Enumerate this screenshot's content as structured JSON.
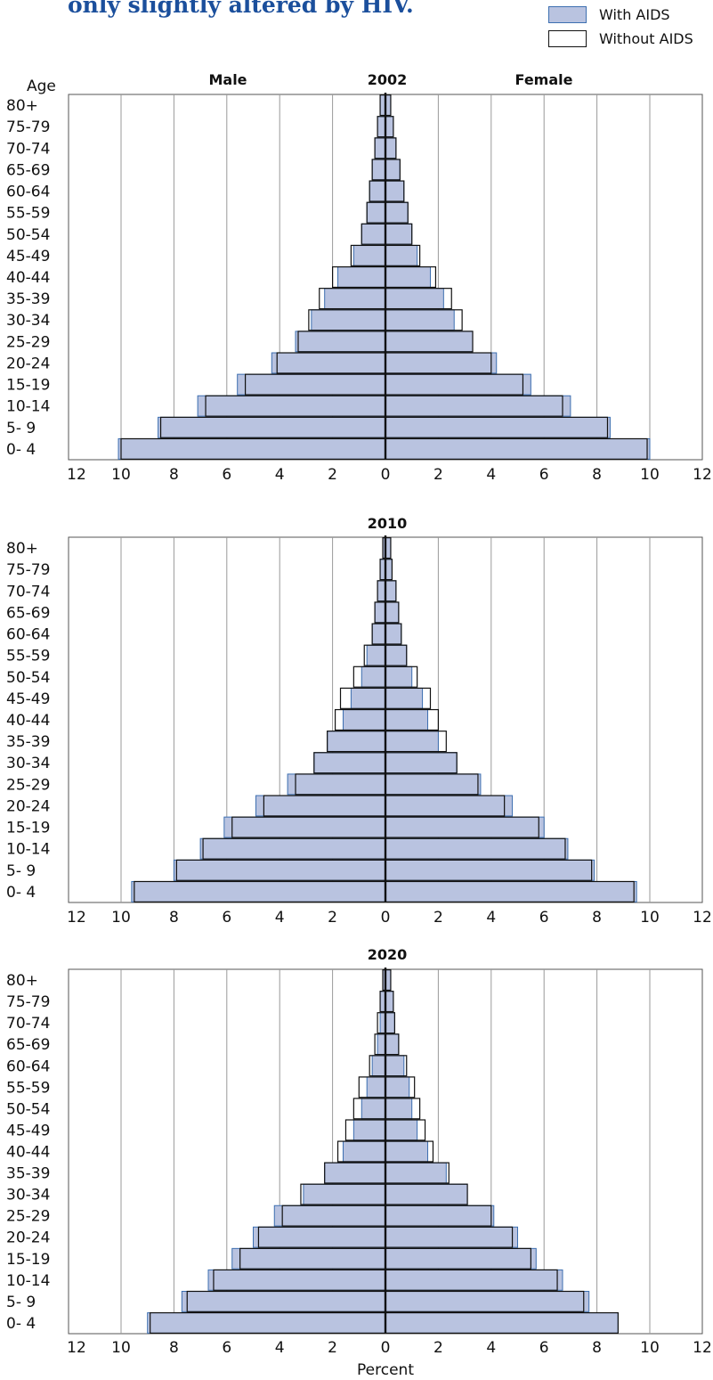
{
  "headline": "only slightly altered by HIV.",
  "colors": {
    "with_aids_fill": "#b9c3e0",
    "with_aids_stroke": "#3d6fb0",
    "without_aids_stroke": "#111111",
    "grid": "#9a9a9a",
    "headline": "#1b4f9c"
  },
  "legend": [
    {
      "label": "With AIDS",
      "style": "filled"
    },
    {
      "label": "Without AIDS",
      "style": "outline"
    }
  ],
  "labels": {
    "age": "Age",
    "male": "Male",
    "female": "Female",
    "percent": "Percent"
  },
  "chart_data": [
    {
      "type": "bar",
      "orientation": "horizontal-pyramid",
      "title": "2002",
      "categories": [
        "80+",
        "75-79",
        "70-74",
        "65-69",
        "60-64",
        "55-59",
        "50-54",
        "45-49",
        "40-44",
        "35-39",
        "30-34",
        "25-29",
        "20-24",
        "15-19",
        "10-14",
        "5- 9",
        "0- 4"
      ],
      "series": [
        {
          "name": "With AIDS",
          "male": [
            0.2,
            0.3,
            0.4,
            0.5,
            0.6,
            0.7,
            0.9,
            1.2,
            1.8,
            2.3,
            2.8,
            3.4,
            4.3,
            5.6,
            7.1,
            8.6,
            10.1
          ],
          "female": [
            0.2,
            0.3,
            0.4,
            0.55,
            0.7,
            0.85,
            1.0,
            1.2,
            1.7,
            2.2,
            2.6,
            3.3,
            4.2,
            5.5,
            7.0,
            8.5,
            10.0
          ]
        },
        {
          "name": "Without AIDS",
          "male": [
            0.2,
            0.3,
            0.4,
            0.5,
            0.6,
            0.7,
            0.9,
            1.3,
            2.0,
            2.5,
            2.9,
            3.3,
            4.1,
            5.3,
            6.8,
            8.5,
            10.0
          ],
          "female": [
            0.2,
            0.3,
            0.4,
            0.55,
            0.7,
            0.85,
            1.0,
            1.3,
            1.9,
            2.5,
            2.9,
            3.3,
            4.0,
            5.2,
            6.7,
            8.4,
            9.9
          ]
        }
      ],
      "xlim": [
        -12,
        12
      ],
      "xticks": [
        "12",
        "10",
        "8",
        "6",
        "4",
        "2",
        "0",
        "2",
        "4",
        "6",
        "8",
        "10",
        "12"
      ]
    },
    {
      "type": "bar",
      "orientation": "horizontal-pyramid",
      "title": "2010",
      "categories": [
        "80+",
        "75-79",
        "70-74",
        "65-69",
        "60-64",
        "55-59",
        "50-54",
        "45-49",
        "40-44",
        "35-39",
        "30-34",
        "25-29",
        "20-24",
        "15-19",
        "10-14",
        "5- 9",
        "0- 4"
      ],
      "series": [
        {
          "name": "With AIDS",
          "male": [
            0.1,
            0.2,
            0.3,
            0.4,
            0.5,
            0.7,
            0.9,
            1.3,
            1.6,
            2.2,
            2.7,
            3.7,
            4.9,
            6.1,
            7.0,
            8.0,
            9.6
          ],
          "female": [
            0.2,
            0.25,
            0.4,
            0.5,
            0.6,
            0.8,
            1.0,
            1.4,
            1.6,
            2.0,
            2.7,
            3.6,
            4.8,
            6.0,
            6.9,
            7.9,
            9.5
          ]
        },
        {
          "name": "Without AIDS",
          "male": [
            0.1,
            0.2,
            0.3,
            0.4,
            0.5,
            0.8,
            1.2,
            1.7,
            1.9,
            2.2,
            2.7,
            3.4,
            4.6,
            5.8,
            6.9,
            7.9,
            9.5
          ],
          "female": [
            0.2,
            0.25,
            0.4,
            0.5,
            0.6,
            0.8,
            1.2,
            1.7,
            2.0,
            2.3,
            2.7,
            3.5,
            4.5,
            5.8,
            6.8,
            7.8,
            9.4
          ]
        }
      ],
      "xlim": [
        -12,
        12
      ],
      "xticks": [
        "12",
        "10",
        "8",
        "6",
        "4",
        "2",
        "0",
        "2",
        "4",
        "6",
        "8",
        "10",
        "12"
      ]
    },
    {
      "type": "bar",
      "orientation": "horizontal-pyramid",
      "title": "2020",
      "categories": [
        "80+",
        "75-79",
        "70-74",
        "65-69",
        "60-64",
        "55-59",
        "50-54",
        "45-49",
        "40-44",
        "35-39",
        "30-34",
        "25-29",
        "20-24",
        "15-19",
        "10-14",
        "5- 9",
        "0- 4"
      ],
      "series": [
        {
          "name": "With AIDS",
          "male": [
            0.1,
            0.2,
            0.2,
            0.3,
            0.5,
            0.7,
            0.9,
            1.2,
            1.6,
            2.3,
            3.1,
            4.2,
            5.0,
            5.8,
            6.7,
            7.7,
            9.0
          ],
          "female": [
            0.2,
            0.3,
            0.35,
            0.5,
            0.7,
            0.9,
            1.0,
            1.2,
            1.6,
            2.3,
            3.1,
            4.1,
            5.0,
            5.7,
            6.7,
            7.7,
            8.8
          ]
        },
        {
          "name": "Without AIDS",
          "male": [
            0.1,
            0.2,
            0.3,
            0.4,
            0.6,
            1.0,
            1.2,
            1.5,
            1.8,
            2.3,
            3.2,
            3.9,
            4.8,
            5.5,
            6.5,
            7.5,
            8.9
          ],
          "female": [
            0.2,
            0.3,
            0.35,
            0.5,
            0.8,
            1.1,
            1.3,
            1.5,
            1.8,
            2.4,
            3.1,
            4.0,
            4.8,
            5.5,
            6.5,
            7.5,
            8.8
          ]
        }
      ],
      "xlim": [
        -12,
        12
      ],
      "xticks": [
        "12",
        "10",
        "8",
        "6",
        "4",
        "2",
        "0",
        "2",
        "4",
        "6",
        "8",
        "10",
        "12"
      ]
    }
  ]
}
